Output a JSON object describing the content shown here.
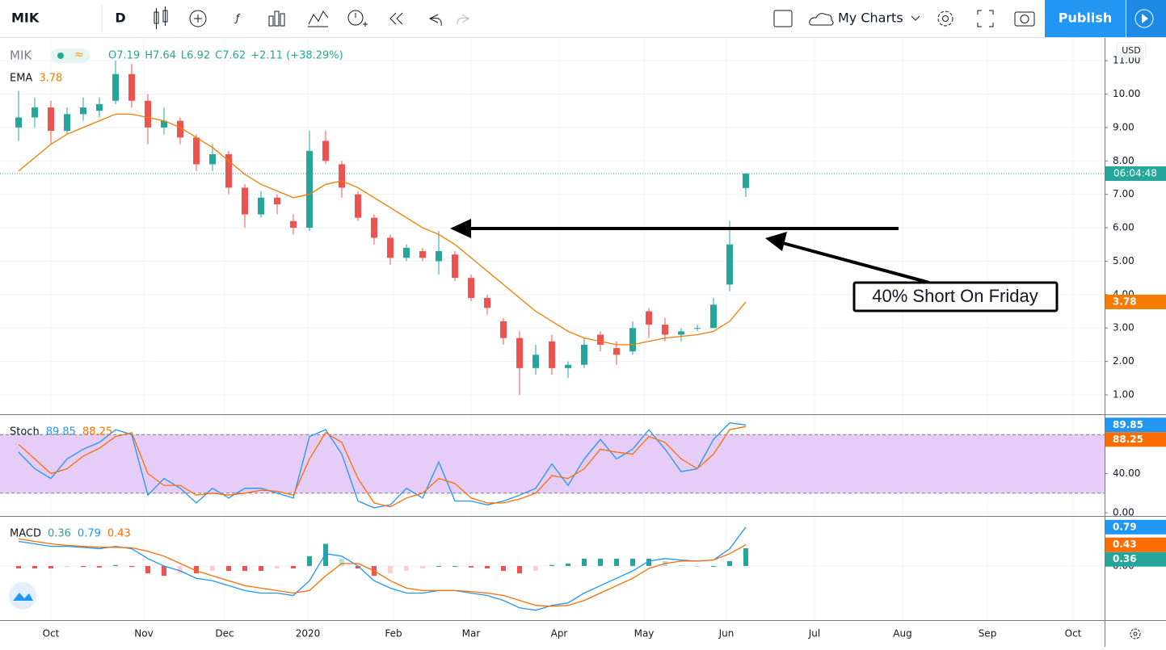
{
  "toolbar": {
    "symbol": "MIK",
    "interval": "D",
    "my_charts": "My Charts",
    "publish": "Publish"
  },
  "chart_data": [
    {
      "type": "candlestick",
      "symbol": "MIK",
      "ohlc_text": [
        "O7.19",
        "H7.64",
        "L6.92",
        "C7.62",
        "+2.11 (+38.29%)"
      ],
      "open": [
        9.0,
        9.3,
        9.6,
        8.9,
        9.4,
        9.5,
        9.8,
        10.6,
        9.8,
        9.0,
        9.2,
        8.7,
        7.9,
        8.2,
        7.2,
        6.4,
        6.9,
        6.2,
        6.0,
        8.6,
        7.9,
        7.0,
        6.3,
        5.7,
        5.1,
        5.3,
        5.0,
        5.2,
        4.5,
        3.9,
        3.2,
        2.7,
        1.8,
        2.6,
        1.8,
        1.9,
        2.8,
        2.4,
        2.3,
        3.5,
        3.1,
        2.8,
        3.0,
        3.0,
        4.3,
        7.19
      ],
      "high": [
        10.1,
        9.9,
        9.8,
        9.6,
        9.9,
        9.9,
        11.0,
        10.9,
        10.0,
        9.6,
        9.3,
        8.8,
        8.5,
        8.3,
        7.3,
        7.1,
        7.0,
        6.4,
        8.9,
        8.9,
        8.0,
        7.1,
        6.4,
        5.8,
        5.5,
        5.4,
        5.9,
        5.3,
        4.6,
        4.0,
        3.3,
        2.9,
        2.5,
        2.8,
        2.0,
        2.7,
        2.9,
        2.6,
        3.2,
        3.6,
        3.3,
        3.0,
        3.1,
        3.9,
        6.2,
        7.64
      ],
      "low": [
        8.6,
        9.0,
        8.5,
        8.8,
        9.2,
        9.3,
        9.7,
        9.6,
        8.5,
        8.8,
        8.5,
        7.7,
        7.7,
        7.0,
        6.0,
        6.3,
        6.4,
        5.8,
        5.9,
        7.9,
        6.9,
        6.2,
        5.5,
        4.9,
        5.0,
        5.0,
        4.6,
        4.4,
        3.8,
        3.4,
        2.5,
        1.0,
        1.6,
        1.6,
        1.5,
        1.8,
        2.3,
        1.9,
        2.2,
        2.7,
        2.6,
        2.6,
        2.9,
        3.0,
        4.1,
        6.92
      ],
      "close": [
        9.3,
        9.6,
        8.9,
        9.4,
        9.6,
        9.7,
        10.6,
        9.8,
        9.0,
        9.2,
        8.7,
        7.9,
        8.2,
        7.2,
        6.4,
        6.9,
        6.7,
        6.0,
        8.3,
        8.0,
        7.2,
        6.3,
        5.7,
        5.1,
        5.4,
        5.1,
        5.3,
        4.5,
        3.9,
        3.6,
        2.7,
        1.8,
        2.2,
        1.8,
        1.9,
        2.5,
        2.5,
        2.2,
        3.0,
        3.1,
        2.8,
        2.9,
        3.0,
        3.7,
        5.5,
        7.62
      ],
      "up_color": "#26a69a",
      "down_color": "#ef5350",
      "series": [
        {
          "name": "EMA",
          "color": "#f57c00",
          "values": [
            7.7,
            8.1,
            8.5,
            8.8,
            9.0,
            9.2,
            9.4,
            9.4,
            9.3,
            9.2,
            9.0,
            8.7,
            8.4,
            8.0,
            7.6,
            7.3,
            7.1,
            6.9,
            7.0,
            7.3,
            7.4,
            7.2,
            6.9,
            6.6,
            6.3,
            6.0,
            5.8,
            5.5,
            5.1,
            4.7,
            4.3,
            3.9,
            3.5,
            3.2,
            2.9,
            2.7,
            2.6,
            2.5,
            2.5,
            2.6,
            2.7,
            2.75,
            2.8,
            2.9,
            3.2,
            3.78
          ]
        }
      ],
      "ylim": [
        0.42,
        11.68
      ],
      "yticks": [
        {
          "value": 1,
          "label": "1.00"
        },
        {
          "value": 2,
          "label": "2.00"
        },
        {
          "value": 3,
          "label": "3.00"
        },
        {
          "value": 4,
          "label": "4.00"
        },
        {
          "value": 5,
          "label": "5.00"
        },
        {
          "value": 6,
          "label": "6.00"
        },
        {
          "value": 7,
          "label": "7.00"
        },
        {
          "value": 8,
          "label": "8.00"
        },
        {
          "value": 9,
          "label": "9.00"
        },
        {
          "value": 10,
          "label": "10.00"
        },
        {
          "value": 11,
          "label": "11.00"
        }
      ],
      "xlim": [
        -1.15,
        67.2
      ],
      "xticks": [
        {
          "value": 2,
          "label": "Oct"
        },
        {
          "value": 7.75,
          "label": "Nov"
        },
        {
          "value": 12.75,
          "label": "Dec"
        },
        {
          "value": 17.9,
          "label": "2020"
        },
        {
          "value": 23.2,
          "label": "Feb"
        },
        {
          "value": 28,
          "label": "Mar"
        },
        {
          "value": 33.45,
          "label": "Apr"
        },
        {
          "value": 38.7,
          "label": "May"
        },
        {
          "value": 43.8,
          "label": "Jun"
        },
        {
          "value": 49.25,
          "label": "Jul"
        },
        {
          "value": 54.7,
          "label": "Aug"
        },
        {
          "value": 59.95,
          "label": "Sep"
        },
        {
          "value": 65.25,
          "label": "Oct"
        }
      ],
      "currency": "USD",
      "countdown": "06:04:48",
      "grid": true,
      "annotation": "40% Short On Friday"
    },
    {
      "type": "line",
      "title": "Stoch",
      "series": [
        {
          "color": "#2196f3",
          "values": [
            62,
            45,
            35,
            55,
            65,
            72,
            85,
            80,
            18,
            35,
            25,
            10,
            25,
            15,
            25,
            25,
            20,
            15,
            78,
            85,
            60,
            12,
            5,
            8,
            25,
            15,
            52,
            12,
            12,
            8,
            12,
            18,
            25,
            50,
            28,
            55,
            75,
            55,
            65,
            85,
            65,
            42,
            45,
            75,
            92,
            89.85
          ]
        },
        {
          "color": "#ff6d00",
          "values": [
            70,
            55,
            40,
            45,
            58,
            66,
            78,
            82,
            40,
            28,
            28,
            18,
            20,
            18,
            20,
            23,
            22,
            18,
            55,
            82,
            72,
            35,
            10,
            6,
            15,
            20,
            35,
            30,
            15,
            10,
            10,
            14,
            20,
            38,
            35,
            45,
            65,
            62,
            60,
            78,
            72,
            55,
            45,
            60,
            85,
            88.25
          ]
        }
      ],
      "bands": [
        20,
        80
      ],
      "band_color": "#e6cdf7",
      "ylim": [
        -3.33,
        100
      ],
      "yticks": [
        {
          "value": 0,
          "label": "0.00"
        },
        {
          "value": 40,
          "label": "40.00"
        }
      ],
      "grid": true
    },
    {
      "type": "macd",
      "title": "MACD",
      "series": [
        {
          "color": "#26a69a",
          "values": [
            -0.05,
            -0.05,
            -0.05,
            -0.02,
            -0.02,
            -0.03,
            0.02,
            -0.02,
            -0.15,
            -0.2,
            -0.15,
            -0.15,
            -0.1,
            -0.1,
            -0.1,
            -0.1,
            -0.05,
            -0.05,
            0.2,
            0.45,
            0.15,
            -0.05,
            -0.2,
            -0.15,
            -0.1,
            -0.05,
            0,
            0,
            -0.03,
            -0.05,
            -0.1,
            -0.15,
            -0.1,
            0.02,
            0.05,
            0.15,
            0.15,
            0.15,
            0.15,
            0.15,
            0.1,
            0.02,
            0,
            0,
            0.1,
            0.36
          ]
        },
        {
          "color": "#2196f3",
          "values": [
            0.5,
            0.45,
            0.4,
            0.4,
            0.38,
            0.35,
            0.4,
            0.35,
            0.15,
            0,
            -0.1,
            -0.25,
            -0.3,
            -0.4,
            -0.5,
            -0.55,
            -0.55,
            -0.6,
            -0.3,
            0.25,
            0.2,
            0,
            -0.3,
            -0.45,
            -0.55,
            -0.55,
            -0.5,
            -0.5,
            -0.55,
            -0.6,
            -0.7,
            -0.85,
            -0.9,
            -0.8,
            -0.75,
            -0.55,
            -0.4,
            -0.25,
            -0.1,
            0.1,
            0.15,
            0.12,
            0.1,
            0.12,
            0.35,
            0.79
          ]
        },
        {
          "color": "#ff6d00",
          "values": [
            0.55,
            0.5,
            0.45,
            0.42,
            0.4,
            0.38,
            0.38,
            0.37,
            0.3,
            0.2,
            0.05,
            -0.1,
            -0.2,
            -0.3,
            -0.4,
            -0.45,
            -0.5,
            -0.55,
            -0.5,
            -0.2,
            0.05,
            0.05,
            -0.1,
            -0.3,
            -0.45,
            -0.5,
            -0.5,
            -0.5,
            -0.52,
            -0.55,
            -0.6,
            -0.7,
            -0.8,
            -0.82,
            -0.8,
            -0.7,
            -0.55,
            -0.4,
            -0.25,
            -0.05,
            0.05,
            0.1,
            0.1,
            0.12,
            0.25,
            0.43
          ]
        }
      ],
      "ylim": [
        -1.1,
        1.0
      ],
      "yticks": [
        {
          "value": 0,
          "label": "0.00"
        }
      ],
      "grid": true
    }
  ]
}
